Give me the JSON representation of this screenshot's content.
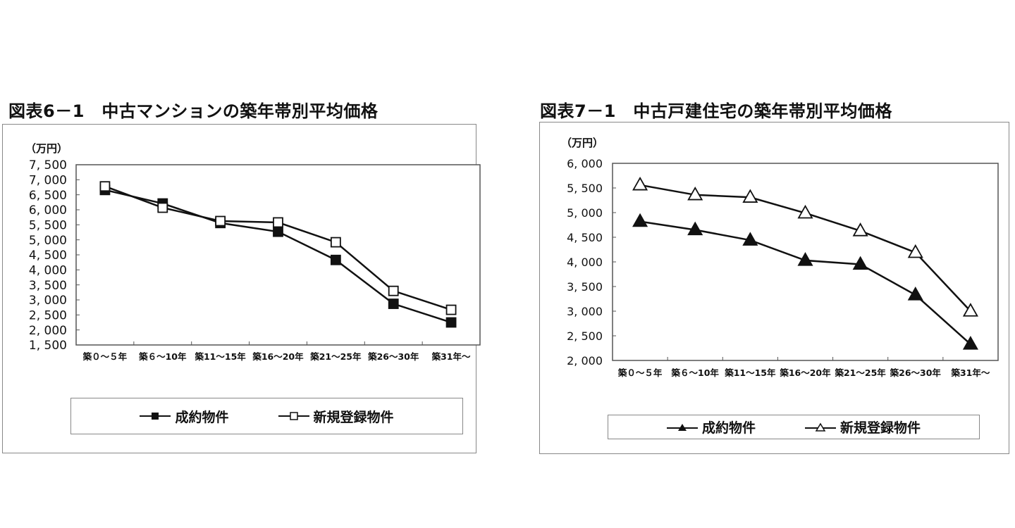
{
  "chart_data": [
    {
      "type": "line",
      "title": "図表6－1　中古マンションの築年帯別平均価格",
      "ylabel": "（万円）",
      "xlabel": "",
      "categories": [
        "築０～５年",
        "築６～10年",
        "築11～15年",
        "築16～20年",
        "築21～25年",
        "築26～30年",
        "築31年～"
      ],
      "ylim": [
        1500,
        7500
      ],
      "yticks": [
        "1,500",
        "2,000",
        "2,500",
        "3,000",
        "3,500",
        "4,000",
        "4,500",
        "5,000",
        "5,500",
        "6,000",
        "6,500",
        "7,000",
        "7,500"
      ],
      "grid": false,
      "legend_position": "bottom",
      "series": [
        {
          "name": "成約物件",
          "marker": "filled-square",
          "values": [
            6660,
            6210,
            5560,
            5270,
            4330,
            2870,
            2250
          ]
        },
        {
          "name": "新規登録物件",
          "marker": "open-square",
          "values": [
            6780,
            6070,
            5625,
            5580,
            4920,
            3300,
            2670
          ]
        }
      ]
    },
    {
      "type": "line",
      "title": "図表7－1　中古戸建住宅の築年帯別平均価格",
      "ylabel": "（万円）",
      "xlabel": "",
      "categories": [
        "築０～５年",
        "築６～10年",
        "築11～15年",
        "築16～20年",
        "築21～25年",
        "築26～30年",
        "築31年～"
      ],
      "ylim": [
        2000,
        6000
      ],
      "yticks": [
        "2,000",
        "2,500",
        "3,000",
        "3,500",
        "4,000",
        "4,500",
        "5,000",
        "5,500",
        "6,000"
      ],
      "grid": false,
      "legend_position": "bottom",
      "series": [
        {
          "name": "成約物件",
          "marker": "filled-triangle",
          "values": [
            4820,
            4650,
            4440,
            4030,
            3950,
            3330,
            2330
          ]
        },
        {
          "name": "新規登録物件",
          "marker": "open-triangle",
          "values": [
            5560,
            5360,
            5310,
            4990,
            4630,
            4190,
            3000
          ]
        }
      ]
    }
  ],
  "left": {
    "title": "図表6－1　中古マンションの築年帯別平均価格",
    "unit": "（万円）",
    "legend": [
      "成約物件",
      "新規登録物件"
    ]
  },
  "right": {
    "title": "図表7－1　中古戸建住宅の築年帯別平均価格",
    "unit": "（万円）",
    "legend": [
      "成約物件",
      "新規登録物件"
    ]
  },
  "colors": {
    "line": "#111111",
    "frame": "#888888",
    "background": "#ffffff"
  }
}
